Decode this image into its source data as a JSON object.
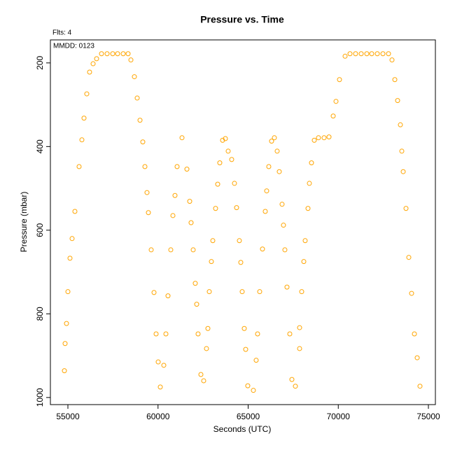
{
  "chart_data": {
    "type": "scatter",
    "title": "Pressure  vs. Time",
    "annotations": [
      "Flts: 4",
      "MMDD: 0123"
    ],
    "x_label": "Seconds (UTC)",
    "y_label": "Pressure (mbar)",
    "xlim": [
      54029,
      75388
    ],
    "ylim": [
      145,
      1017
    ],
    "y_inverted": true,
    "xticks": [
      55000,
      60000,
      65000,
      70000,
      75000
    ],
    "yticks": [
      200,
      400,
      600,
      800,
      1000
    ],
    "color": "#ffa500",
    "x": [
      54806,
      54845,
      54922,
      55000,
      55116,
      55233,
      55388,
      55621,
      55776,
      55893,
      56048,
      56203,
      56398,
      56592,
      56864,
      57175,
      57486,
      57757,
      58068,
      58340,
      58495,
      58689,
      58844,
      59000,
      59155,
      59272,
      59388,
      59466,
      59621,
      59777,
      59893,
      60010,
      60126,
      60320,
      60437,
      60553,
      60708,
      60825,
      60941,
      61058,
      61330,
      61602,
      61757,
      61834,
      61951,
      62067,
      62145,
      62222,
      62378,
      62533,
      62688,
      62766,
      62844,
      62960,
      63038,
      63193,
      63310,
      63426,
      63581,
      63737,
      63892,
      64086,
      64241,
      64358,
      64513,
      64591,
      64669,
      64785,
      64863,
      64979,
      65290,
      65445,
      65523,
      65640,
      65795,
      65950,
      66028,
      66144,
      66300,
      66455,
      66610,
      66727,
      66882,
      66960,
      67037,
      67154,
      67310,
      67426,
      67621,
      67854,
      67854,
      67970,
      68087,
      68164,
      68320,
      68397,
      68514,
      68669,
      68902,
      69213,
      69485,
      69718,
      69873,
      70067,
      70378,
      70650,
      70961,
      71272,
      71582,
      71854,
      72165,
      72476,
      72786,
      72980,
      73136,
      73291,
      73446,
      73524,
      73602,
      73757,
      73912,
      74067,
      74223,
      74378,
      74533
    ],
    "y": [
      936,
      871,
      823,
      747,
      667,
      620,
      555,
      448,
      384,
      332,
      274,
      222,
      202,
      190,
      178,
      178,
      178,
      178,
      178,
      178,
      193,
      233,
      284,
      337,
      389,
      448,
      510,
      558,
      647,
      749,
      848,
      915,
      975,
      923,
      848,
      757,
      647,
      565,
      517,
      448,
      379,
      454,
      531,
      582,
      647,
      727,
      777,
      848,
      945,
      960,
      883,
      835,
      747,
      675,
      625,
      548,
      490,
      439,
      385,
      381,
      411,
      431,
      488,
      546,
      625,
      677,
      747,
      835,
      885,
      972,
      983,
      911,
      848,
      747,
      645,
      555,
      506,
      448,
      387,
      379,
      411,
      460,
      538,
      588,
      647,
      736,
      848,
      957,
      973,
      883,
      833,
      747,
      675,
      625,
      548,
      488,
      439,
      385,
      379,
      379,
      377,
      327,
      292,
      240,
      184,
      178,
      178,
      178,
      178,
      178,
      178,
      178,
      178,
      193,
      240,
      290,
      348,
      411,
      460,
      548,
      665,
      751,
      848,
      905,
      973
    ]
  }
}
